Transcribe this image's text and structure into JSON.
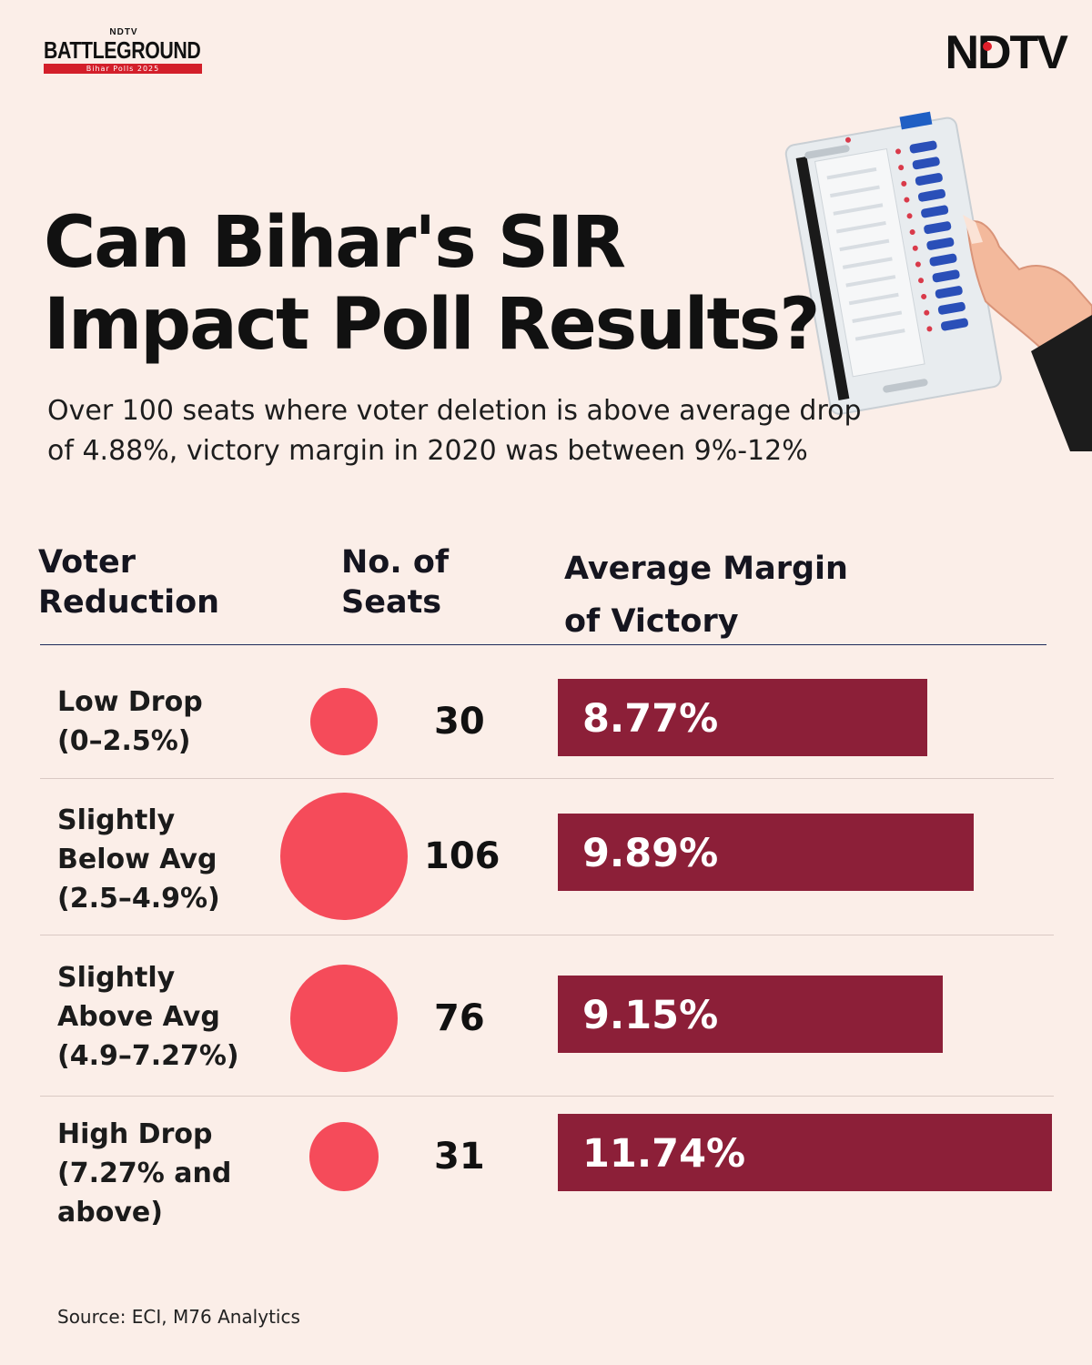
{
  "brand": {
    "top_small": "NDTV",
    "battleground": "BATTLEGROUND",
    "battleground_sub": "Bihar Polls 2025",
    "ndtv": "NDTV"
  },
  "header": {
    "title_line1": "Can Bihar's SIR",
    "title_line2": "Impact Poll Results?",
    "subtitle_line1": "Over 100 seats where voter deletion is above average drop",
    "subtitle_line2": "of 4.88%, victory margin in 2020 was between 9%-12%"
  },
  "columns": {
    "voter_reduction_1": "Voter",
    "voter_reduction_2": "Reduction",
    "seats_1": "No. of",
    "seats_2": "Seats",
    "margin_1": "Average Margin",
    "margin_2": "of Victory"
  },
  "chart_data": {
    "type": "table",
    "rows": [
      {
        "label_lines": [
          "Low Drop",
          "(0–2.5%)"
        ],
        "seats": 30,
        "seats_label": "30",
        "margin": 8.77,
        "margin_label": "8.77%"
      },
      {
        "label_lines": [
          "Slightly",
          "Below Avg",
          "(2.5–4.9%)"
        ],
        "seats": 106,
        "seats_label": "106",
        "margin": 9.89,
        "margin_label": "9.89%"
      },
      {
        "label_lines": [
          "Slightly",
          "Above Avg",
          "(4.9–7.27%)"
        ],
        "seats": 76,
        "seats_label": "76",
        "margin": 9.15,
        "margin_label": "9.15%"
      },
      {
        "label_lines": [
          "High Drop",
          "(7.27% and",
          "above)"
        ],
        "seats": 31,
        "seats_label": "31",
        "margin": 11.74,
        "margin_label": "11.74%"
      }
    ],
    "colors": {
      "bubble": "#f54b5a",
      "bar": "#8c1f38"
    }
  },
  "footer": {
    "source": "Source: ECI, M76 Analytics"
  }
}
